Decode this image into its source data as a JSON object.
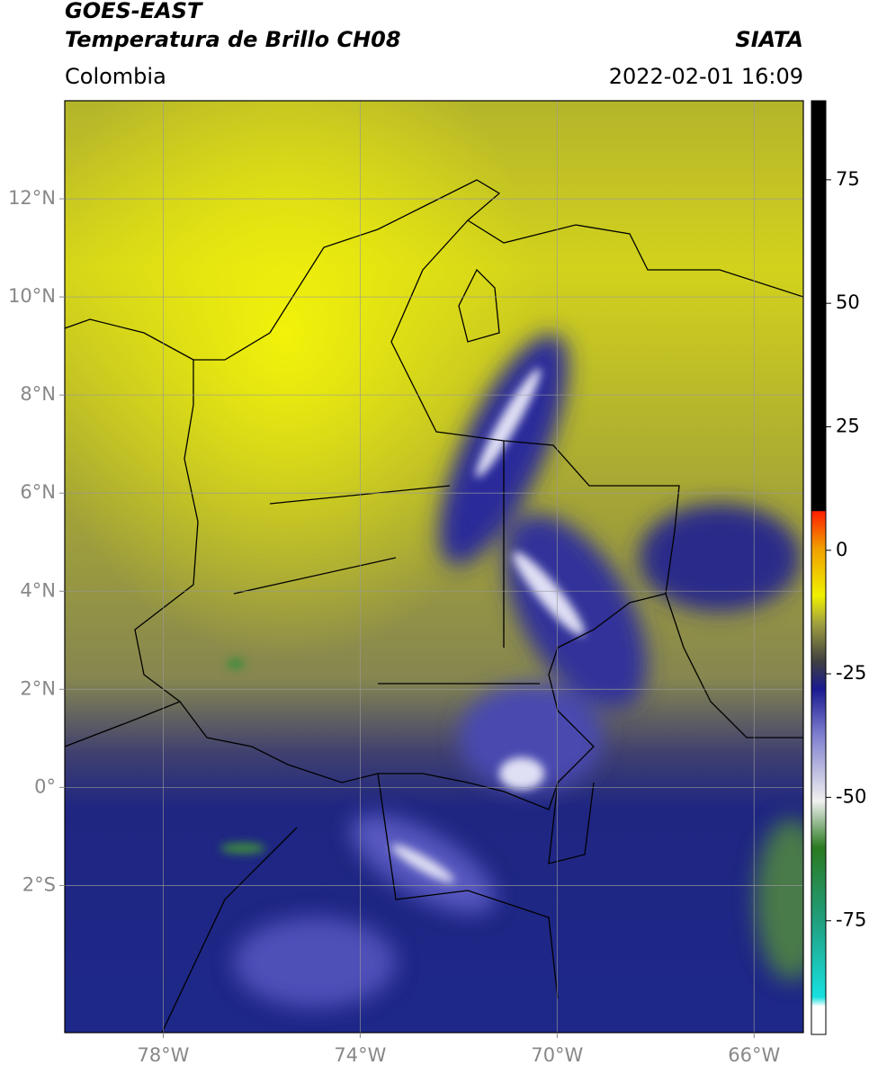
{
  "header": {
    "satellite": "GOES-EAST",
    "product": "Temperatura de Brillo CH08",
    "region": "Colombia",
    "source": "SIATA",
    "datetime": "2022-02-01 16:09"
  },
  "map": {
    "lonlim": [
      -80,
      -65
    ],
    "latlim": [
      -5,
      14
    ],
    "grid": true,
    "lon_ticks": [
      {
        "value": -78,
        "label": "78°W"
      },
      {
        "value": -74,
        "label": "74°W"
      },
      {
        "value": -70,
        "label": "70°W"
      },
      {
        "value": -66,
        "label": "66°W"
      }
    ],
    "lat_ticks": [
      {
        "value": 12,
        "label": "12°N"
      },
      {
        "value": 10,
        "label": "10°N"
      },
      {
        "value": 8,
        "label": "8°N"
      },
      {
        "value": 6,
        "label": "6°N"
      },
      {
        "value": 4,
        "label": "4°N"
      },
      {
        "value": 2,
        "label": "2°N"
      },
      {
        "value": 0,
        "label": "0°"
      },
      {
        "value": -2,
        "label": "2°S"
      }
    ]
  },
  "colorbar": {
    "lim": [
      -98,
      91
    ],
    "ticks": [
      75,
      50,
      25,
      0,
      -25,
      -50,
      -75
    ]
  }
}
